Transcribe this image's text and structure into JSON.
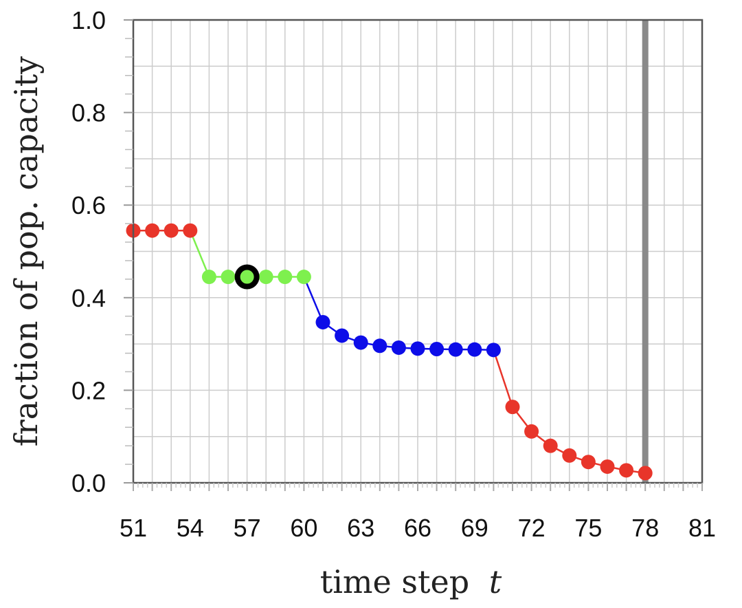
{
  "chart_data": {
    "type": "line",
    "title": "",
    "xlabel": "time step",
    "xlabel_var": "t",
    "ylabel": "fraction of pop. capacity",
    "xlim": [
      51,
      81
    ],
    "ylim": [
      0.0,
      1.0
    ],
    "x_ticks": [
      51,
      54,
      57,
      60,
      63,
      66,
      69,
      72,
      75,
      78,
      81
    ],
    "y_ticks": [
      0.0,
      0.2,
      0.4,
      0.6,
      0.8,
      1.0
    ],
    "y_tick_labels": [
      "0.0",
      "0.2",
      "0.4",
      "0.6",
      "0.8",
      "1.0"
    ],
    "grid": true,
    "segments": [
      {
        "color": "#e8352a",
        "x": [
          51,
          52,
          53,
          54
        ],
        "y": [
          0.545,
          0.545,
          0.545,
          0.545
        ]
      },
      {
        "color": "#7ef04e",
        "x": [
          54,
          55,
          56,
          57,
          58,
          59,
          60
        ],
        "y": [
          0.545,
          0.445,
          0.445,
          0.445,
          0.445,
          0.445,
          0.445
        ],
        "marker_start": 1
      },
      {
        "color": "#0d0de8",
        "x": [
          60,
          61,
          62,
          63,
          64,
          65,
          66,
          67,
          68,
          69,
          70
        ],
        "y": [
          0.445,
          0.347,
          0.318,
          0.303,
          0.296,
          0.292,
          0.29,
          0.289,
          0.288,
          0.288,
          0.287
        ],
        "marker_start": 1
      },
      {
        "color": "#e8352a",
        "x": [
          70,
          71,
          72,
          73,
          74,
          75,
          76,
          77,
          78
        ],
        "y": [
          0.287,
          0.164,
          0.111,
          0.08,
          0.059,
          0.045,
          0.035,
          0.027,
          0.021
        ],
        "marker_start": 1
      }
    ],
    "highlight_point": {
      "x": 57,
      "y": 0.445
    },
    "vertical_line_x": 78
  }
}
